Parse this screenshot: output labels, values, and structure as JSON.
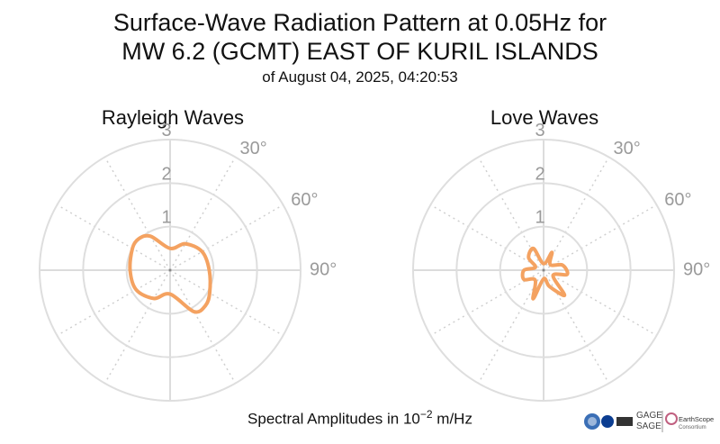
{
  "title": {
    "line1": "Surface-Wave Radiation Pattern at 0.05Hz for",
    "line2": "MW 6.2 (GCMT) EAST OF KURIL ISLANDS",
    "subtitle": "of August 04, 2025, 04:20:53"
  },
  "footer": {
    "label_prefix": "Spectral Amplitudes in ",
    "base": "10",
    "exponent": "−2",
    "unit": " m/Hz"
  },
  "logos": {
    "gage": "GAGE",
    "sage": "SAGE",
    "earthscope": "EarthScope",
    "consortium": "Consortium"
  },
  "chart_data": [
    {
      "type": "polar",
      "title": "Rayleigh Waves",
      "r_ticks": [
        "1",
        "2",
        "3"
      ],
      "r_max": 3,
      "theta_ticks": [
        "30°",
        "60°",
        "90°"
      ],
      "theta_zero": "north",
      "theta_direction": "clockwise",
      "color": "#f4a261",
      "series": {
        "azimuth_deg": [
          0,
          30,
          60,
          90,
          120,
          135,
          150,
          180,
          210,
          240,
          270,
          300,
          315,
          330
        ],
        "amplitude": [
          0.5,
          0.7,
          0.85,
          0.9,
          1.05,
          1.15,
          1.1,
          0.55,
          0.75,
          0.9,
          0.92,
          1.0,
          1.02,
          0.9
        ]
      }
    },
    {
      "type": "polar",
      "title": "Love Waves",
      "r_ticks": [
        "1",
        "2",
        "3"
      ],
      "r_max": 3,
      "theta_ticks": [
        "30°",
        "60°",
        "90°"
      ],
      "theta_zero": "north",
      "theta_direction": "clockwise",
      "color": "#f4a261",
      "series": {
        "azimuth_deg": [
          0,
          25,
          50,
          75,
          100,
          120,
          140,
          160,
          180,
          200,
          220,
          245,
          270,
          290,
          310,
          335
        ],
        "amplitude": [
          0.15,
          0.45,
          0.2,
          0.45,
          0.55,
          0.25,
          0.75,
          0.4,
          0.2,
          0.7,
          0.3,
          0.5,
          0.45,
          0.2,
          0.45,
          0.55
        ]
      }
    }
  ]
}
